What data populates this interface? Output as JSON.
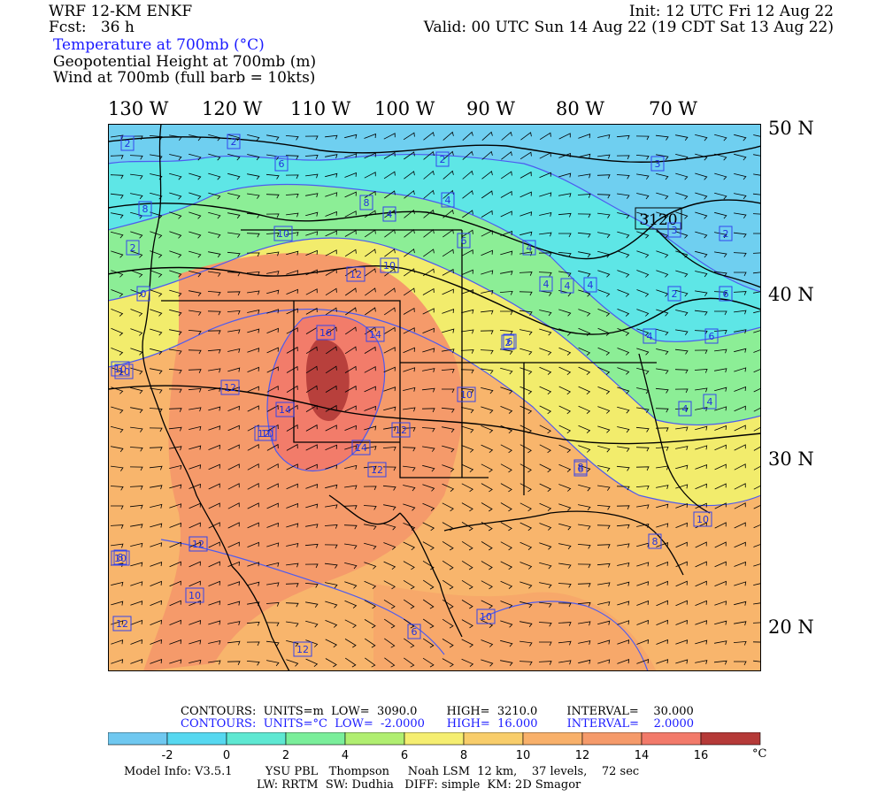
{
  "header": {
    "model": "WRF 12-KM ENKF",
    "fcst_label": "Fcst:",
    "fcst_value": "36 h",
    "init": "Init: 12 UTC Fri 12 Aug 22",
    "valid": "Valid: 00 UTC Sun 14 Aug 22 (19 CDT Sat 13 Aug 22)",
    "fields": [
      "Temperature at 700mb (°C)",
      "Geopotential Height at 700mb (m)",
      "Wind at 700mb (full barb = 10kts)"
    ]
  },
  "axes": {
    "lon_labels": [
      "130 W",
      "120 W",
      "110 W",
      "100 W",
      "90 W",
      "80 W",
      "70 W"
    ],
    "lat_labels": [
      "50 N",
      "40 N",
      "30 N",
      "20 N"
    ]
  },
  "map": {
    "height_label": "3120",
    "temp_labels": [
      "2",
      "2",
      "6",
      "2",
      "3",
      "8",
      "8",
      "4",
      "4",
      "10",
      "6",
      "2",
      "4",
      "4",
      "4",
      "0",
      "2",
      "6",
      "10",
      "12",
      "10",
      "3",
      "2",
      "4",
      "2",
      "6",
      "16",
      "14",
      "10",
      "6",
      "4",
      "4",
      "10",
      "12",
      "14",
      "10",
      "6",
      "4",
      "12",
      "12",
      "14",
      "12",
      "8",
      "8",
      "10",
      "12",
      "10",
      "10",
      "12",
      "10",
      "12",
      "6",
      "8"
    ],
    "colors": {
      "land_outline": "#000000",
      "contour_temp": "#4d5bf0",
      "contour_height": "#000000"
    }
  },
  "footer": {
    "contours_height": "CONTOURS:  UNITS=m  LOW=  3090.0        HIGH=  3210.0        INTERVAL=    30.000",
    "contours_temp": "CONTOURS:  UNITS=°C  LOW=  -2.0000      HIGH=  16.000        INTERVAL=    2.0000",
    "unit": "°C",
    "model_info": "Model Info: V3.5.1         YSU PBL   Thompson     Noah LSM  12 km,    37 levels,    72 sec",
    "model_info2": "LW: RRTM  SW: Dudhia   DIFF: simple  KM: 2D Smagor"
  },
  "colorbar": {
    "ticks": [
      "-2",
      "0",
      "2",
      "4",
      "6",
      "8",
      "10",
      "12",
      "14",
      "16"
    ],
    "colors": [
      "#6fc8f0",
      "#56d8f0",
      "#5ee8d2",
      "#7aee9a",
      "#b0ee70",
      "#f5ee70",
      "#f8cd6a",
      "#f8b06a",
      "#f59a6a",
      "#f27a6a",
      "#b53a38"
    ]
  }
}
